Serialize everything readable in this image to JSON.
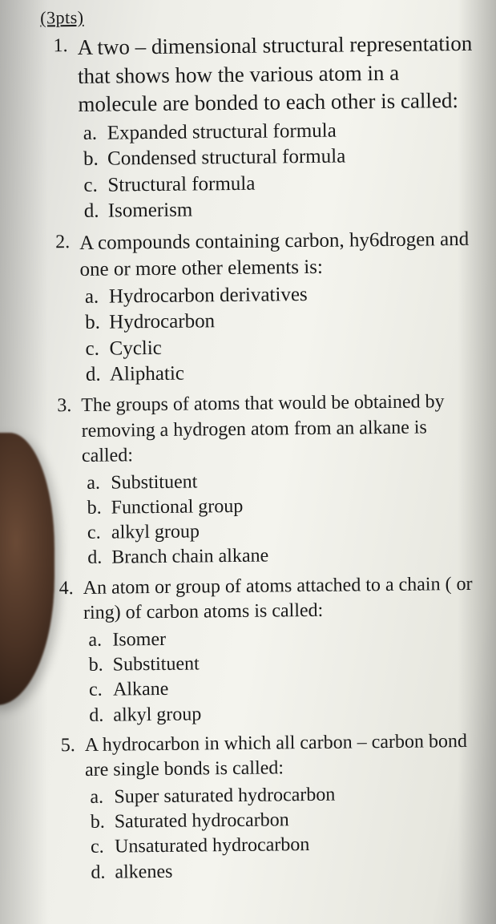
{
  "header": "(3pts)",
  "questions": [
    {
      "num": "1.",
      "stem": "A two – dimensional structural representation that shows how the various atom in a molecule are bonded to each other is called:",
      "options": [
        {
          "letter": "a.",
          "text": "Expanded structural formula"
        },
        {
          "letter": "b.",
          "text": "Condensed structural formula"
        },
        {
          "letter": "c.",
          "text": "Structural formula"
        },
        {
          "letter": "d.",
          "text": "Isomerism"
        }
      ]
    },
    {
      "num": "2.",
      "stem": "A compounds containing carbon, hy6drogen and one or more other elements is:",
      "options": [
        {
          "letter": "a.",
          "text": "Hydrocarbon derivatives"
        },
        {
          "letter": "b.",
          "text": "Hydrocarbon"
        },
        {
          "letter": "c.",
          "text": "Cyclic"
        },
        {
          "letter": "d.",
          "text": "Aliphatic"
        }
      ]
    },
    {
      "num": "3.",
      "stem": "The groups of atoms that would be obtained by removing a hydrogen atom from an alkane is called:",
      "options": [
        {
          "letter": "a.",
          "text": "Substituent"
        },
        {
          "letter": "b.",
          "text": "Functional group"
        },
        {
          "letter": "c.",
          "text": "alkyl group"
        },
        {
          "letter": "d.",
          "text": "Branch chain alkane"
        }
      ]
    },
    {
      "num": "4.",
      "stem": "An atom or group of atoms attached to a chain ( or ring) of carbon atoms is called:",
      "options": [
        {
          "letter": "a.",
          "text": "Isomer"
        },
        {
          "letter": "b.",
          "text": "Substituent"
        },
        {
          "letter": "c.",
          "text": "Alkane"
        },
        {
          "letter": "d.",
          "text": "alkyl group"
        }
      ]
    },
    {
      "num": "5.",
      "stem": "A hydrocarbon in which all carbon – carbon bond are single bonds is called:",
      "options": [
        {
          "letter": "a.",
          "text": "Super saturated hydrocarbon"
        },
        {
          "letter": "b.",
          "text": "Saturated hydrocarbon"
        },
        {
          "letter": "c.",
          "text": "Unsaturated hydrocarbon"
        },
        {
          "letter": "d.",
          "text": "alkenes"
        }
      ]
    }
  ]
}
